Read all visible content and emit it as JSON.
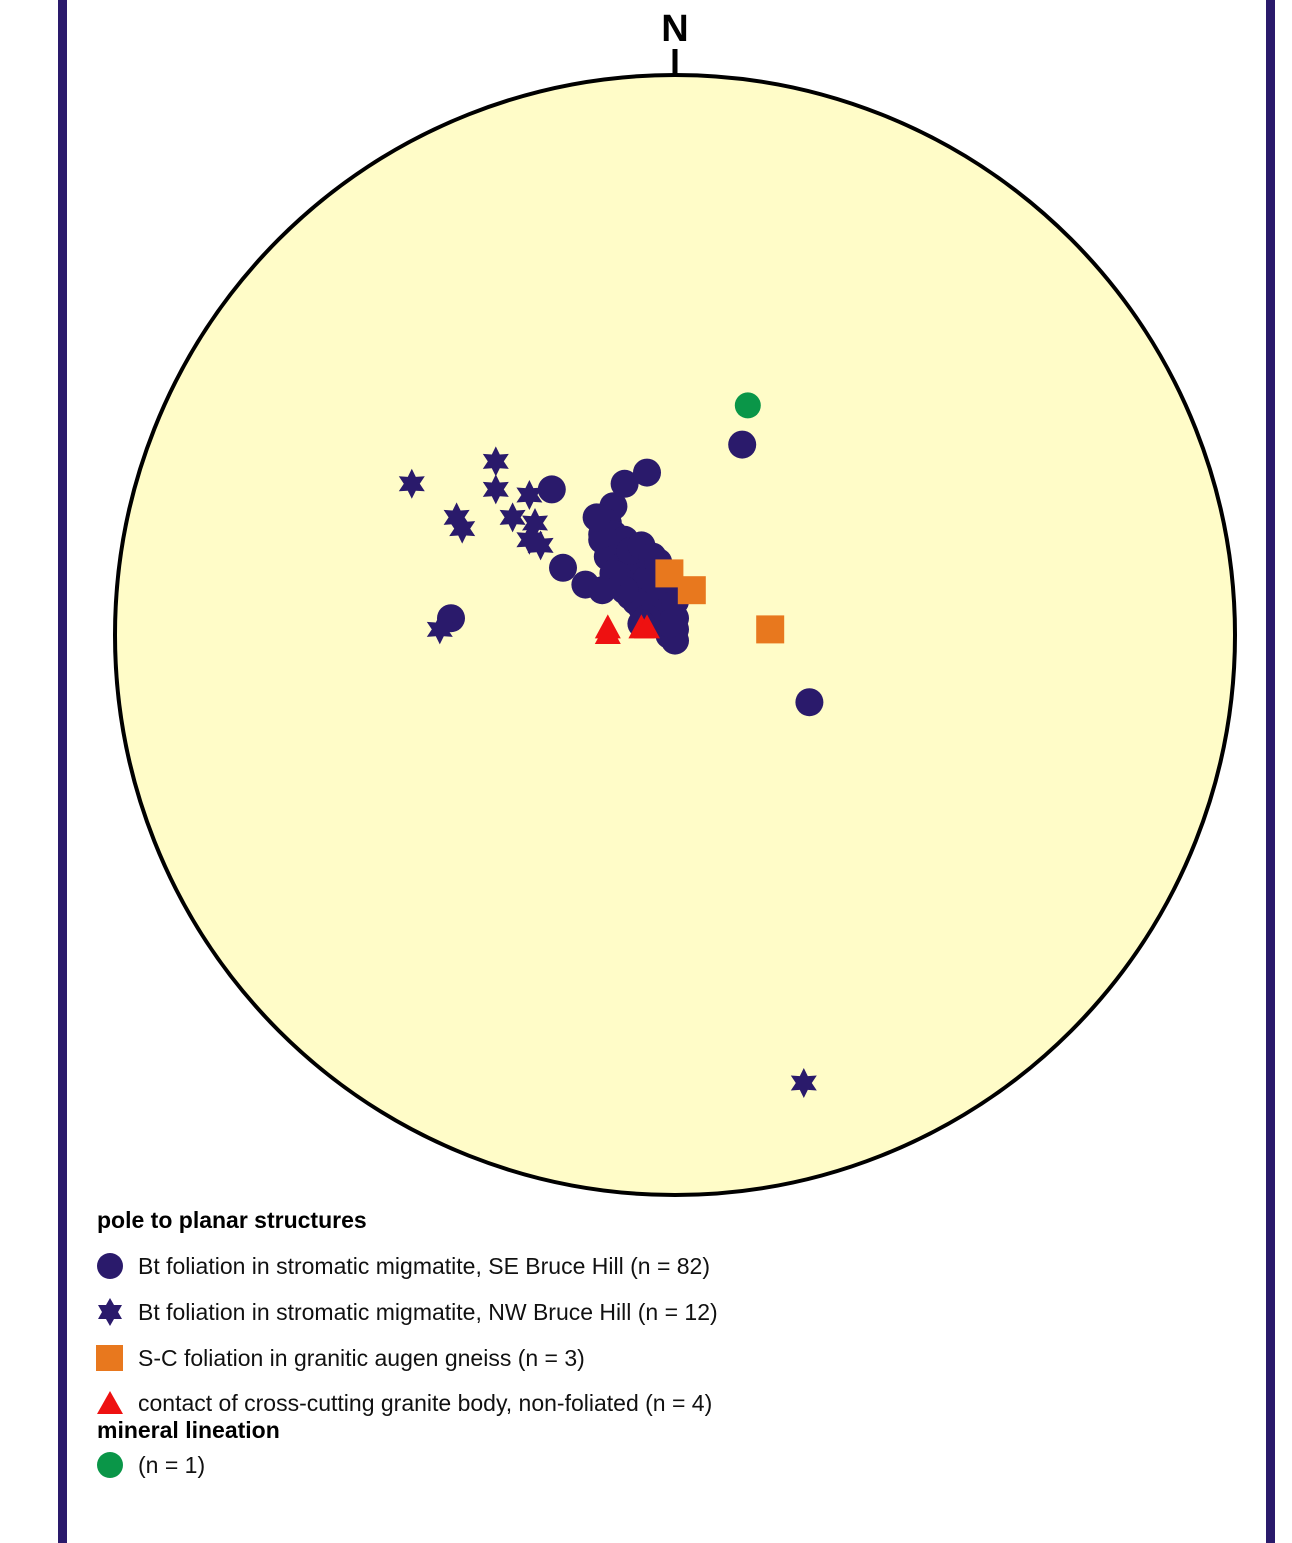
{
  "north_label": "N",
  "legend": {
    "poles_title": "pole to planar structures",
    "items": [
      {
        "symbol": "circle",
        "color": "#2a1a6b",
        "label": "Bt foliation in stromatic migmatite, SE Bruce Hill (n = 82)"
      },
      {
        "symbol": "star",
        "color": "#2a1a6b",
        "label": "Bt foliation in stromatic migmatite, NW Bruce Hill (n = 12)"
      },
      {
        "symbol": "square",
        "color": "#e8781e",
        "label": "S-C foliation in granitic augen gneiss (n = 3)"
      },
      {
        "symbol": "triangle",
        "color": "#ee1111",
        "label": "contact of cross-cutting granite body, non-foliated (n = 4)"
      }
    ],
    "lineation_title": "mineral lineation",
    "lineation_item": {
      "symbol": "circle",
      "color": "#0a9648",
      "label": "(n = 1)"
    }
  },
  "colors": {
    "frame": "#2a1a6b",
    "net_fill": "#fffcc8",
    "net_outline": "#000000",
    "bt_se": "#2a1a6b",
    "bt_nw": "#2a1a6b",
    "sc": "#e8781e",
    "contact": "#ee1111",
    "lineation": "#0a9648"
  },
  "chart_data": {
    "type": "scatter",
    "projection": "equal-area lower hemisphere (stereonet)",
    "coordinate_note": "x = east-west, y = north-south, unit circle radius (east and north positive)",
    "series": [
      {
        "name": "Bt foliation in stromatic migmatite, SE Bruce Hill (n = 82)",
        "symbol": "circle",
        "points": [
          [
            -0.22,
            0.26
          ],
          [
            -0.11,
            0.23
          ],
          [
            -0.09,
            0.27
          ],
          [
            -0.05,
            0.29
          ],
          [
            -0.12,
            0.2
          ],
          [
            -0.13,
            0.17
          ],
          [
            -0.11,
            0.15
          ],
          [
            -0.09,
            0.14
          ],
          [
            -0.07,
            0.12
          ],
          [
            -0.05,
            0.13
          ],
          [
            -0.06,
            0.1
          ],
          [
            -0.04,
            0.09
          ],
          [
            -0.03,
            0.07
          ],
          [
            -0.02,
            0.05
          ],
          [
            -0.01,
            0.03
          ],
          [
            0.0,
            0.01
          ],
          [
            -0.08,
            0.09
          ],
          [
            -0.06,
            0.07
          ],
          [
            -0.04,
            0.05
          ],
          [
            -0.02,
            0.03
          ],
          [
            -0.09,
            0.11
          ],
          [
            -0.07,
            0.08
          ],
          [
            -0.05,
            0.06
          ],
          [
            -0.03,
            0.04
          ],
          [
            -0.01,
            0.01
          ],
          [
            -0.1,
            0.16
          ],
          [
            -0.08,
            0.13
          ],
          [
            -0.06,
            0.11
          ],
          [
            -0.04,
            0.1
          ],
          [
            -0.03,
            0.08
          ],
          [
            -0.02,
            0.06
          ],
          [
            -0.01,
            0.05
          ],
          [
            0.0,
            0.03
          ],
          [
            -0.11,
            0.18
          ],
          [
            -0.1,
            0.14
          ],
          [
            -0.05,
            0.08
          ],
          [
            -0.07,
            0.1
          ],
          [
            -0.06,
            0.05
          ],
          [
            -0.04,
            0.07
          ],
          [
            -0.02,
            0.09
          ],
          [
            -0.01,
            0.08
          ],
          [
            -0.03,
            0.11
          ],
          [
            -0.08,
            0.07
          ],
          [
            -0.07,
            0.14
          ],
          [
            -0.05,
            0.12
          ],
          [
            -0.04,
            0.03
          ],
          [
            -0.02,
            0.02
          ],
          [
            -0.01,
            0.0
          ],
          [
            0.0,
            -0.01
          ],
          [
            -0.06,
            0.09
          ],
          [
            -0.09,
            0.17
          ],
          [
            -0.12,
            0.14
          ],
          [
            -0.1,
            0.12
          ],
          [
            -0.08,
            0.11
          ],
          [
            -0.06,
            0.13
          ],
          [
            -0.04,
            0.12
          ],
          [
            -0.03,
            0.1
          ],
          [
            -0.02,
            0.07
          ],
          [
            -0.01,
            0.06
          ],
          [
            -0.05,
            0.1
          ],
          [
            -0.07,
            0.06
          ],
          [
            -0.09,
            0.08
          ],
          [
            -0.11,
            0.11
          ],
          [
            -0.08,
            0.15
          ],
          [
            -0.06,
            0.16
          ],
          [
            -0.04,
            0.14
          ],
          [
            -0.03,
            0.06
          ],
          [
            -0.02,
            0.04
          ],
          [
            -0.01,
            0.02
          ],
          [
            0.0,
            0.06
          ],
          [
            -0.05,
            0.03
          ],
          [
            -0.06,
            0.02
          ],
          [
            -0.13,
            0.18
          ],
          [
            -0.14,
            0.21
          ],
          [
            -0.2,
            0.12
          ],
          [
            -0.16,
            0.09
          ],
          [
            -0.13,
            0.08
          ],
          [
            -0.4,
            0.03
          ],
          [
            0.12,
            0.34
          ],
          [
            0.24,
            -0.12
          ],
          [
            -0.01,
            0.1
          ],
          [
            -0.03,
            0.13
          ]
        ]
      },
      {
        "name": "Bt foliation in stromatic migmatite, NW Bruce Hill (n = 12)",
        "symbol": "star",
        "points": [
          [
            -0.47,
            0.27
          ],
          [
            -0.32,
            0.31
          ],
          [
            -0.32,
            0.26
          ],
          [
            -0.26,
            0.25
          ],
          [
            -0.39,
            0.21
          ],
          [
            -0.29,
            0.21
          ],
          [
            -0.25,
            0.2
          ],
          [
            -0.38,
            0.19
          ],
          [
            -0.26,
            0.17
          ],
          [
            -0.24,
            0.16
          ],
          [
            -0.42,
            0.01
          ],
          [
            0.23,
            -0.8
          ]
        ]
      },
      {
        "name": "S-C foliation in granitic augen gneiss (n = 3)",
        "symbol": "square",
        "points": [
          [
            -0.01,
            0.11
          ],
          [
            0.03,
            0.08
          ],
          [
            0.17,
            0.01
          ]
        ]
      },
      {
        "name": "contact of cross-cutting granite body, non-foliated (n = 4)",
        "symbol": "triangle",
        "points": [
          [
            -0.12,
            0.01
          ],
          [
            -0.12,
            0.0
          ],
          [
            -0.06,
            0.01
          ],
          [
            -0.05,
            0.01
          ]
        ]
      },
      {
        "name": "mineral lineation (n = 1)",
        "symbol": "circle",
        "points": [
          [
            0.13,
            0.41
          ]
        ]
      }
    ]
  }
}
